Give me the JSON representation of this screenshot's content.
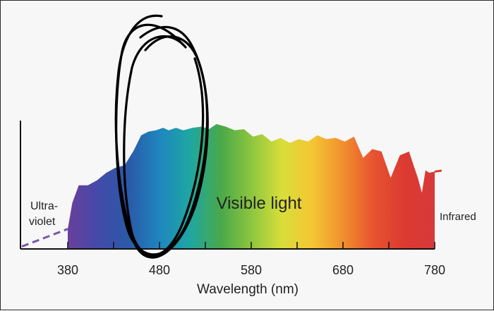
{
  "chart_data": {
    "type": "area",
    "title": "",
    "xlabel": "Wavelength (nm)",
    "ylabel": "",
    "xlim": [
      330,
      790
    ],
    "ylim": [
      0,
      1
    ],
    "x_ticks": [
      380,
      480,
      580,
      680,
      780
    ],
    "x_tick_labels": [
      "380",
      "480",
      "580",
      "680",
      "780"
    ],
    "grid": false,
    "annotations": {
      "visible": "Visible light",
      "uv_line1": "Ultra-",
      "uv_line2": "violet",
      "infrared": "Infrared"
    },
    "series": [
      {
        "x": [
          380,
          385,
          392,
          402,
          412,
          422,
          432,
          442,
          452,
          460,
          468,
          476,
          484,
          490,
          498,
          506,
          516,
          526,
          534,
          542,
          552,
          562,
          572,
          582,
          592,
          602,
          612,
          622,
          632,
          642,
          652,
          662,
          672,
          682,
          692,
          702,
          712,
          722,
          732,
          742,
          752,
          762,
          766,
          770,
          774,
          780
        ],
        "values": [
          0.16,
          0.37,
          0.51,
          0.51,
          0.55,
          0.61,
          0.65,
          0.67,
          0.79,
          0.91,
          0.94,
          0.95,
          0.97,
          0.95,
          0.97,
          0.95,
          0.97,
          0.98,
          0.96,
          1.0,
          0.98,
          0.95,
          0.96,
          0.9,
          0.92,
          0.86,
          0.89,
          0.85,
          0.88,
          0.86,
          0.91,
          0.88,
          0.89,
          0.86,
          0.9,
          0.73,
          0.8,
          0.78,
          0.57,
          0.75,
          0.78,
          0.56,
          0.45,
          0.63,
          0.61,
          0.62
        ]
      }
    ],
    "uv_dashed": {
      "x": [
        330,
        380
      ],
      "values": [
        0.02,
        0.16
      ]
    },
    "ir_dashed": {
      "x": [
        780,
        790
      ],
      "values": [
        0.62,
        0.63
      ]
    },
    "colors": {
      "spectrum": [
        "#6a3f9c",
        "#434aa8",
        "#2a5aa8",
        "#1f86bf",
        "#1ea7a2",
        "#49a84a",
        "#8cc63f",
        "#d8de3a",
        "#f4c633",
        "#f0902e",
        "#e8532f",
        "#db3a31",
        "#d8393a"
      ],
      "uv_dash": "#7a55a8",
      "ir_dash": "#d8393a",
      "axis": "#111111",
      "annotation_ink": "#000000"
    }
  }
}
